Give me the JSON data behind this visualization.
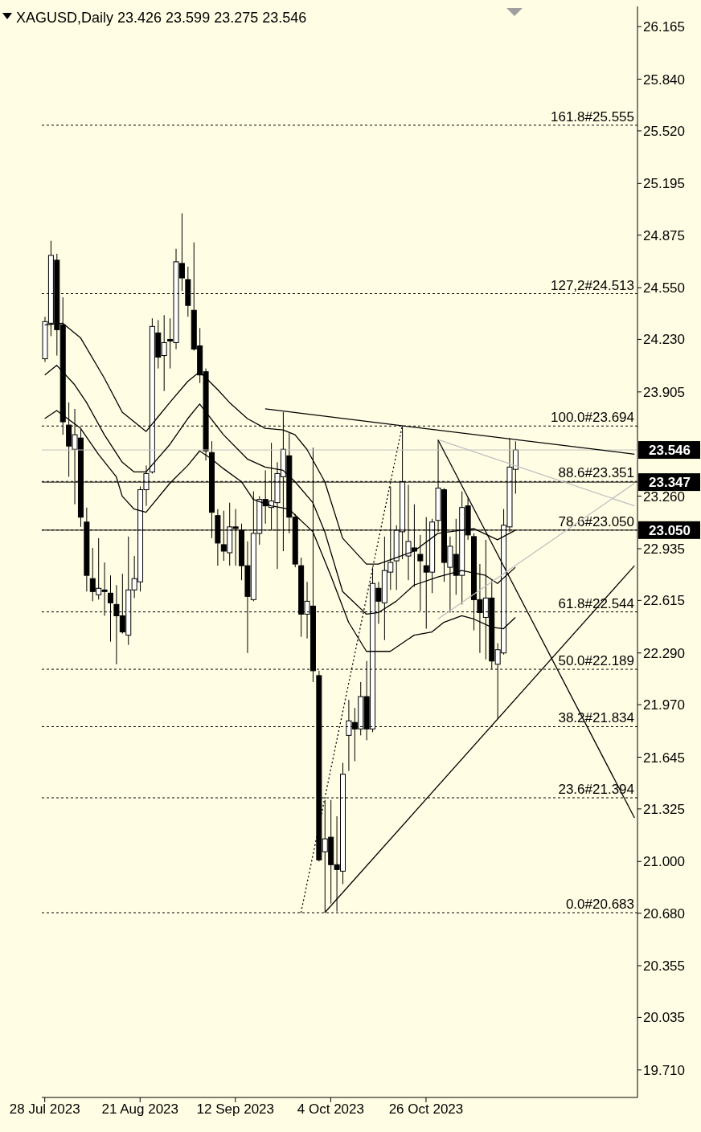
{
  "chart_data": {
    "type": "candlestick",
    "title": "XAGUSD,Daily 23.426 23.599 23.275 23.546",
    "color": "#000000",
    "categories": [
      "28 Jul 2023",
      null,
      null,
      null,
      null,
      null,
      null,
      null,
      null,
      null,
      null,
      null,
      null,
      null,
      null,
      null,
      "21 Aug 2023",
      null,
      null,
      null,
      null,
      null,
      null,
      null,
      null,
      null,
      null,
      null,
      null,
      null,
      null,
      null,
      "12 Sep 2023",
      null,
      null,
      null,
      null,
      null,
      null,
      null,
      null,
      null,
      null,
      null,
      null,
      null,
      null,
      null,
      "4 Oct 2023",
      null,
      null,
      null,
      null,
      null,
      null,
      null,
      null,
      null,
      null,
      null,
      null,
      null,
      null,
      null,
      "26 Oct 2023",
      null,
      null,
      null,
      null,
      null,
      null,
      null,
      null,
      null,
      null,
      null,
      null,
      null,
      null,
      null,
      null,
      null,
      null,
      null,
      null,
      null,
      null,
      null,
      null,
      null,
      null,
      null,
      null,
      null,
      null,
      null,
      null,
      null,
      null,
      null
    ],
    "ohlc": [
      [
        24.11,
        24.37,
        24.09,
        24.34
      ],
      [
        24.33,
        24.84,
        24.25,
        24.75
      ],
      [
        24.72,
        24.76,
        24.13,
        24.29
      ],
      [
        24.32,
        24.49,
        23.64,
        23.72
      ],
      [
        23.7,
        23.84,
        23.38,
        23.57
      ],
      [
        23.55,
        23.8,
        23.21,
        23.64
      ],
      [
        23.62,
        23.68,
        23.07,
        23.13
      ],
      [
        23.1,
        23.19,
        22.67,
        22.77
      ],
      [
        22.75,
        22.94,
        22.61,
        22.67
      ],
      [
        22.65,
        23.0,
        22.62,
        22.69
      ],
      [
        22.68,
        22.85,
        22.52,
        22.67
      ],
      [
        22.66,
        22.77,
        22.36,
        22.6
      ],
      [
        22.59,
        22.71,
        22.22,
        22.52
      ],
      [
        22.52,
        22.78,
        22.41,
        22.42
      ],
      [
        22.4,
        23.01,
        22.34,
        22.68
      ],
      [
        22.68,
        22.89,
        22.63,
        22.75
      ],
      [
        22.73,
        23.32,
        22.67,
        23.3
      ],
      [
        23.3,
        23.45,
        23.2,
        23.4
      ],
      [
        23.41,
        24.36,
        23.4,
        24.31
      ],
      [
        24.27,
        24.35,
        24.05,
        24.12
      ],
      [
        24.13,
        24.38,
        23.91,
        24.21
      ],
      [
        24.23,
        24.36,
        24.05,
        24.22
      ],
      [
        24.21,
        24.79,
        24.17,
        24.71
      ],
      [
        24.7,
        25.01,
        24.53,
        24.61
      ],
      [
        24.6,
        24.68,
        24.37,
        24.44
      ],
      [
        24.41,
        24.83,
        24.16,
        24.17
      ],
      [
        24.19,
        24.3,
        23.96,
        24.01
      ],
      [
        24.03,
        24.05,
        23.48,
        23.54
      ],
      [
        23.53,
        23.6,
        23.0,
        23.16
      ],
      [
        23.14,
        23.18,
        22.83,
        22.97
      ],
      [
        22.96,
        23.17,
        22.86,
        22.92
      ],
      [
        22.91,
        23.22,
        22.83,
        23.07
      ],
      [
        23.07,
        23.18,
        22.83,
        23.06
      ],
      [
        23.05,
        23.09,
        22.74,
        22.83
      ],
      [
        22.83,
        22.98,
        22.29,
        22.64
      ],
      [
        22.62,
        23.29,
        22.61,
        23.03
      ],
      [
        23.03,
        23.26,
        22.96,
        23.24
      ],
      [
        23.24,
        23.42,
        23.09,
        23.2
      ],
      [
        23.19,
        23.59,
        23.05,
        23.23
      ],
      [
        23.22,
        23.47,
        22.81,
        23.4
      ],
      [
        23.38,
        23.78,
        22.92,
        23.55
      ],
      [
        23.51,
        23.65,
        23.03,
        23.13
      ],
      [
        23.13,
        23.15,
        22.82,
        22.84
      ],
      [
        22.83,
        22.88,
        22.39,
        22.53
      ],
      [
        22.53,
        22.73,
        22.38,
        22.61
      ],
      [
        22.58,
        23.56,
        22.11,
        22.18
      ],
      [
        22.15,
        22.18,
        21.0,
        21.01
      ],
      [
        21.06,
        21.38,
        20.683,
        21.14
      ],
      [
        21.15,
        21.38,
        20.74,
        20.98
      ],
      [
        20.98,
        21.28,
        20.69,
        20.95
      ],
      [
        20.94,
        21.61,
        20.86,
        21.54
      ],
      [
        21.78,
        22.0,
        21.56,
        21.87
      ],
      [
        21.86,
        21.95,
        21.62,
        21.82
      ],
      [
        21.82,
        22.11,
        21.78,
        22.02
      ],
      [
        22.02,
        22.24,
        21.75,
        21.82
      ],
      [
        21.82,
        22.82,
        21.8,
        22.72
      ],
      [
        22.69,
        22.73,
        22.47,
        22.61
      ],
      [
        22.6,
        23.01,
        22.37,
        22.8
      ],
      [
        22.79,
        23.32,
        22.68,
        22.85
      ],
      [
        22.86,
        23.08,
        22.68,
        23.05
      ],
      [
        23.04,
        23.694,
        22.87,
        23.35
      ],
      [
        22.89,
        23.33,
        22.74,
        22.98
      ],
      [
        22.94,
        23.21,
        22.7,
        22.92
      ],
      [
        22.9,
        23.02,
        22.55,
        22.86
      ],
      [
        22.83,
        23.13,
        22.44,
        22.79
      ],
      [
        22.79,
        23.12,
        22.66,
        23.1
      ],
      [
        23.11,
        23.61,
        23.04,
        23.31
      ],
      [
        23.3,
        23.31,
        22.73,
        22.85
      ],
      [
        22.82,
        23.01,
        22.54,
        22.95
      ],
      [
        22.9,
        23.12,
        22.65,
        22.77
      ],
      [
        22.77,
        23.29,
        22.59,
        23.19
      ],
      [
        23.2,
        23.25,
        22.99,
        23.02
      ],
      [
        23.01,
        23.03,
        22.43,
        22.62
      ],
      [
        22.62,
        22.84,
        22.29,
        22.54
      ],
      [
        22.51,
        22.99,
        22.25,
        22.63
      ],
      [
        22.63,
        22.74,
        22.19,
        22.24
      ],
      [
        22.22,
        22.35,
        21.88,
        22.31
      ],
      [
        22.29,
        23.18,
        22.28,
        23.08
      ],
      [
        23.07,
        23.62,
        23.04,
        23.44
      ],
      [
        23.426,
        23.599,
        23.275,
        23.546
      ],
      null,
      null,
      null,
      null,
      null,
      null,
      null,
      null,
      null,
      null,
      null,
      null,
      null,
      null,
      null,
      null,
      null,
      null,
      null,
      null
    ],
    "series": [
      {
        "type": "line",
        "color": "#000000",
        "values": [
          24.32,
          null,
          null,
          24.33,
          null,
          null,
          24.24,
          null,
          null,
          null,
          23.99,
          null,
          null,
          23.78,
          null,
          null,
          null,
          23.66,
          null,
          23.75,
          null,
          23.84,
          null,
          null,
          23.97,
          null,
          24.03,
          null,
          null,
          23.92,
          null,
          23.84,
          null,
          null,
          23.74,
          null,
          null,
          23.68,
          null,
          null,
          23.67,
          null,
          23.64,
          null,
          23.55,
          null,
          null,
          23.35,
          null,
          null,
          23.0,
          null,
          null,
          null,
          22.84,
          null,
          22.84,
          null,
          null,
          22.88,
          null,
          null,
          22.92,
          null,
          null,
          null,
          23.03,
          null,
          null,
          null,
          null,
          null,
          23.06,
          null,
          null,
          null,
          22.99,
          null,
          null,
          23.05,
          null,
          null,
          null,
          null,
          null,
          null,
          null,
          null,
          null,
          null,
          null,
          null,
          null,
          null,
          null,
          null,
          null,
          null,
          null,
          null
        ]
      },
      {
        "type": "line",
        "color": "#000000",
        "values": [
          24.01,
          null,
          24.07,
          null,
          null,
          23.95,
          null,
          23.84,
          null,
          null,
          23.64,
          null,
          null,
          23.47,
          null,
          23.41,
          null,
          23.41,
          null,
          null,
          null,
          23.58,
          null,
          null,
          23.74,
          null,
          23.83,
          null,
          null,
          null,
          23.64,
          null,
          null,
          null,
          23.49,
          null,
          null,
          23.44,
          null,
          null,
          23.42,
          null,
          23.35,
          null,
          null,
          23.22,
          null,
          23.04,
          null,
          null,
          22.67,
          null,
          null,
          null,
          22.53,
          null,
          22.54,
          null,
          null,
          22.61,
          null,
          null,
          22.71,
          null,
          null,
          null,
          22.76,
          null,
          null,
          null,
          22.8,
          null,
          null,
          null,
          22.77,
          null,
          22.72,
          null,
          null,
          22.82,
          null,
          null,
          null,
          null,
          null,
          null,
          null,
          null,
          null,
          null,
          null,
          null,
          null,
          null,
          null,
          null,
          null,
          null,
          null,
          null
        ]
      },
      {
        "type": "line",
        "color": "#000000",
        "values": [
          23.74,
          null,
          23.79,
          null,
          null,
          null,
          23.68,
          null,
          null,
          23.52,
          null,
          null,
          23.38,
          23.26,
          null,
          23.18,
          null,
          23.16,
          null,
          null,
          null,
          23.34,
          null,
          null,
          23.45,
          null,
          23.54,
          null,
          23.49,
          null,
          23.43,
          null,
          null,
          23.35,
          null,
          23.24,
          null,
          null,
          23.2,
          null,
          null,
          23.18,
          null,
          null,
          null,
          23.04,
          null,
          null,
          22.77,
          null,
          null,
          22.48,
          null,
          null,
          22.3,
          null,
          null,
          null,
          22.3,
          null,
          null,
          null,
          22.4,
          null,
          null,
          22.42,
          null,
          22.48,
          null,
          null,
          22.52,
          null,
          22.5,
          null,
          null,
          22.45,
          null,
          22.44,
          null,
          22.51,
          null,
          null,
          null,
          null,
          null,
          null,
          null,
          null,
          null,
          null,
          null,
          null,
          null,
          null,
          null,
          null,
          null,
          null,
          null,
          null
        ]
      },
      {
        "type": "line",
        "color": "#000000",
        "values": [
          null,
          null,
          null,
          null,
          null,
          null,
          null,
          null,
          null,
          null,
          null,
          null,
          null,
          null,
          null,
          null,
          null,
          null,
          null,
          null,
          null,
          null,
          null,
          null,
          null,
          null,
          null,
          null,
          null,
          null,
          null,
          null,
          null,
          null,
          null,
          null,
          null,
          23.8,
          null,
          null,
          null,
          null,
          null,
          null,
          null,
          null,
          null,
          null,
          null,
          null,
          null,
          null,
          null,
          null,
          null,
          null,
          null,
          null,
          null,
          null,
          null,
          null,
          null,
          null,
          null,
          null,
          null,
          null,
          null,
          null,
          null,
          null,
          null,
          null,
          null,
          null,
          null,
          null,
          null,
          null,
          null,
          null,
          null,
          null,
          null,
          null,
          null,
          null,
          null,
          null,
          null,
          null,
          null,
          null,
          null,
          null,
          null,
          null,
          null,
          23.52
        ]
      },
      {
        "type": "line",
        "color": "#000000",
        "values": [
          null,
          null,
          null,
          null,
          null,
          null,
          null,
          null,
          null,
          null,
          null,
          null,
          null,
          null,
          null,
          null,
          null,
          null,
          null,
          null,
          null,
          null,
          null,
          null,
          null,
          null,
          null,
          null,
          null,
          null,
          null,
          null,
          null,
          null,
          null,
          null,
          null,
          null,
          null,
          null,
          null,
          null,
          null,
          null,
          null,
          null,
          null,
          null,
          null,
          null,
          null,
          null,
          null,
          null,
          null,
          null,
          null,
          null,
          null,
          null,
          null,
          null,
          null,
          null,
          null,
          null,
          23.61,
          null,
          null,
          null,
          null,
          null,
          null,
          null,
          null,
          null,
          null,
          null,
          null,
          null,
          null,
          null,
          null,
          null,
          null,
          null,
          null,
          null,
          null,
          null,
          null,
          null,
          null,
          null,
          null,
          null,
          null,
          null,
          null,
          21.27
        ]
      },
      {
        "type": "line",
        "color": "#000000",
        "values": [
          null,
          null,
          null,
          null,
          null,
          null,
          null,
          null,
          null,
          null,
          null,
          null,
          null,
          null,
          null,
          null,
          null,
          null,
          null,
          null,
          null,
          null,
          null,
          null,
          null,
          null,
          null,
          null,
          null,
          null,
          null,
          null,
          null,
          null,
          null,
          null,
          null,
          null,
          null,
          null,
          null,
          null,
          null,
          null,
          null,
          null,
          null,
          20.683,
          null,
          null,
          null,
          null,
          null,
          null,
          null,
          null,
          null,
          null,
          null,
          null,
          null,
          null,
          null,
          null,
          null,
          null,
          null,
          null,
          null,
          null,
          null,
          null,
          null,
          null,
          null,
          null,
          null,
          null,
          null,
          null,
          null,
          null,
          null,
          null,
          null,
          null,
          null,
          null,
          null,
          null,
          null,
          null,
          null,
          null,
          null,
          null,
          null,
          null,
          null,
          22.83
        ]
      },
      {
        "type": "line",
        "color": "#000000",
        "line_style": "dotted",
        "values": [
          null,
          null,
          null,
          null,
          null,
          null,
          null,
          null,
          null,
          null,
          null,
          null,
          null,
          null,
          null,
          null,
          null,
          null,
          null,
          null,
          null,
          null,
          null,
          null,
          null,
          null,
          null,
          null,
          null,
          null,
          null,
          null,
          null,
          null,
          null,
          null,
          null,
          null,
          null,
          null,
          null,
          null,
          null,
          20.683,
          null,
          null,
          null,
          null,
          null,
          null,
          null,
          null,
          null,
          null,
          null,
          null,
          null,
          null,
          null,
          null,
          23.694,
          null,
          null,
          null,
          null,
          null,
          null,
          null,
          null,
          null,
          null,
          null,
          null,
          null,
          null,
          null,
          null,
          null,
          null,
          null,
          null,
          null,
          null,
          null,
          null,
          null,
          null,
          null,
          null,
          null,
          null,
          null,
          null,
          null,
          null,
          null,
          null,
          null,
          null,
          null
        ]
      },
      {
        "type": "line",
        "color": "#c0c0c0",
        "values": [
          null,
          null,
          null,
          null,
          null,
          null,
          null,
          null,
          null,
          null,
          null,
          null,
          null,
          null,
          null,
          null,
          null,
          null,
          null,
          null,
          null,
          null,
          null,
          null,
          null,
          null,
          null,
          null,
          null,
          null,
          null,
          null,
          null,
          null,
          null,
          null,
          null,
          null,
          null,
          null,
          null,
          null,
          null,
          null,
          null,
          null,
          null,
          null,
          null,
          null,
          null,
          null,
          null,
          null,
          null,
          null,
          null,
          null,
          null,
          null,
          null,
          null,
          null,
          null,
          null,
          null,
          23.61,
          null,
          null,
          null,
          null,
          null,
          null,
          null,
          null,
          null,
          null,
          null,
          null,
          null,
          null,
          null,
          null,
          null,
          null,
          null,
          null,
          null,
          null,
          null,
          null,
          null,
          null,
          null,
          null,
          null,
          null,
          null,
          null,
          23.2
        ]
      },
      {
        "type": "line",
        "color": "#c0c0c0",
        "values": [
          null,
          null,
          null,
          null,
          null,
          null,
          null,
          null,
          null,
          null,
          null,
          null,
          null,
          null,
          null,
          null,
          null,
          null,
          null,
          null,
          null,
          null,
          null,
          null,
          null,
          null,
          null,
          null,
          null,
          null,
          null,
          null,
          null,
          null,
          null,
          null,
          null,
          null,
          null,
          null,
          null,
          null,
          null,
          null,
          null,
          null,
          null,
          null,
          null,
          null,
          null,
          null,
          null,
          null,
          null,
          null,
          null,
          null,
          null,
          null,
          null,
          null,
          null,
          null,
          null,
          null,
          22.5,
          null,
          null,
          null,
          null,
          null,
          null,
          null,
          null,
          null,
          null,
          null,
          null,
          null,
          null,
          null,
          null,
          null,
          null,
          null,
          null,
          null,
          null,
          null,
          null,
          null,
          null,
          null,
          null,
          null,
          null,
          null,
          null,
          23.34
        ]
      }
    ],
    "ylim": [
      19.54,
      26.29
    ],
    "yticks": [
      26.165,
      {
        "value": 25.84,
        "label": "25.840"
      },
      {
        "value": 25.52,
        "label": "25.520"
      },
      25.195,
      24.875,
      {
        "value": 24.55,
        "label": "24.550"
      },
      {
        "value": 24.23,
        "label": "24.230"
      },
      23.905,
      {
        "value": 23.26,
        "label": "23.260"
      },
      22.935,
      22.615,
      {
        "value": 22.29,
        "label": "22.290"
      },
      {
        "value": 21.97,
        "label": "21.970"
      },
      21.645,
      21.325,
      {
        "value": 21.0,
        "label": "21.000"
      },
      {
        "value": 20.68,
        "label": "20.680"
      },
      20.355,
      20.035,
      {
        "value": 19.71,
        "label": "19.710"
      }
    ],
    "ref_lines": [
      {
        "axis": "y",
        "value": 25.555,
        "label": "161.8#25.555",
        "line_style": "dashed",
        "color": "#000000"
      },
      {
        "axis": "y",
        "value": 24.513,
        "label": "127,2#24.513",
        "line_style": "dashed",
        "color": "#000000"
      },
      {
        "axis": "y",
        "value": 23.694,
        "label": "100.0#23.694",
        "line_style": "dashed",
        "color": "#000000"
      },
      {
        "axis": "y",
        "value": 23.351,
        "label": "88.6#23.351",
        "line_style": "dashed",
        "color": "#000000"
      },
      {
        "axis": "y",
        "value": 23.05,
        "label": "78.6#23.050",
        "line_style": "dashed",
        "color": "#000000"
      },
      {
        "axis": "y",
        "value": 22.544,
        "label": "61.8#22.544",
        "line_style": "dashed",
        "color": "#000000"
      },
      {
        "axis": "y",
        "value": 22.189,
        "label": "50.0#22.189",
        "line_style": "dashed",
        "color": "#000000"
      },
      {
        "axis": "y",
        "value": 21.834,
        "label": "38.2#21.834",
        "line_style": "dashed",
        "color": "#000000"
      },
      {
        "axis": "y",
        "value": 21.394,
        "label": "23.6#21.394",
        "line_style": "dashed",
        "color": "#000000"
      },
      {
        "axis": "y",
        "value": 20.683,
        "label": "0.0#20.683",
        "line_style": "dashed",
        "color": "#000000"
      },
      {
        "axis": "y",
        "value": 23.546,
        "label": "23.546",
        "line_style": "solid",
        "color": "#c0c0c0"
      },
      {
        "axis": "y",
        "value": 23.347,
        "label": "23.347",
        "line_style": "solid",
        "color": "#000000"
      },
      {
        "axis": "y",
        "value": 23.05,
        "label": "23.050",
        "line_style": "solid",
        "color": "#000000"
      }
    ]
  }
}
